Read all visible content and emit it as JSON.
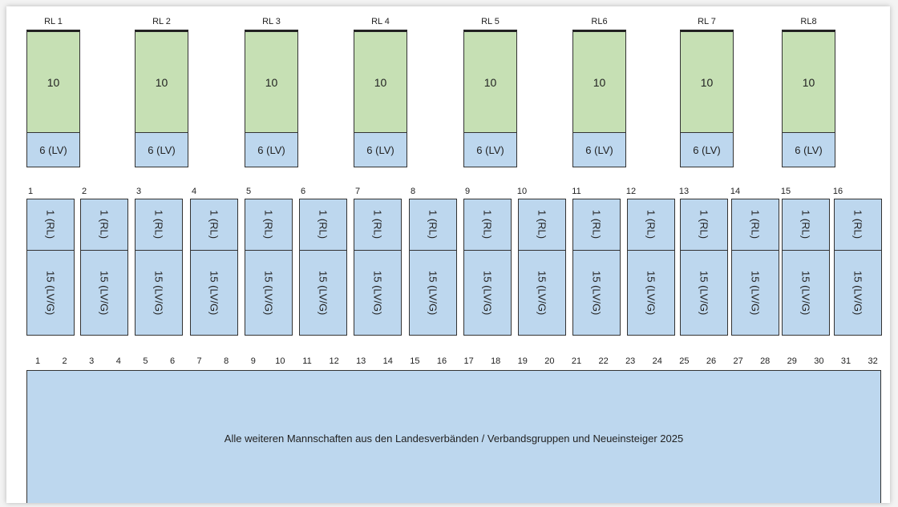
{
  "top_groups": [
    {
      "label": "RL 1",
      "main": "10",
      "sub": "6 (LV)"
    },
    {
      "label": "RL 2",
      "main": "10",
      "sub": "6 (LV)"
    },
    {
      "label": "RL 3",
      "main": "10",
      "sub": "6 (LV)"
    },
    {
      "label": "RL 4",
      "main": "10",
      "sub": "6 (LV)"
    },
    {
      "label": "RL 5",
      "main": "10",
      "sub": "6 (LV)"
    },
    {
      "label": "RL6",
      "main": "10",
      "sub": "6 (LV)"
    },
    {
      "label": "RL 7",
      "main": "10",
      "sub": "6 (LV)"
    },
    {
      "label": "RL8",
      "main": "10",
      "sub": "6 (LV)"
    }
  ],
  "middle_columns": [
    {
      "number": "1",
      "top": "1 (RL)",
      "bottom": "15 (LV/G)"
    },
    {
      "number": "2",
      "top": "1 (RL)",
      "bottom": "15 (LV/G)"
    },
    {
      "number": "3",
      "top": "1 (RL)",
      "bottom": "15 (LV/G)"
    },
    {
      "number": "4",
      "top": "1 (RL)",
      "bottom": "15 (LV/G)"
    },
    {
      "number": "5",
      "top": "1 (RL)",
      "bottom": "15 (LV/G)"
    },
    {
      "number": "6",
      "top": "1 (RL)",
      "bottom": "15 (LV/G)"
    },
    {
      "number": "7",
      "top": "1 (RL)",
      "bottom": "15 (LV/G)"
    },
    {
      "number": "8",
      "top": "1 (RL)",
      "bottom": "15 (LV/G)"
    },
    {
      "number": "9",
      "top": "1 (RL)",
      "bottom": "15 (LV/G)"
    },
    {
      "number": "10",
      "top": "1 (RL)",
      "bottom": "15 (LV/G)"
    },
    {
      "number": "11",
      "top": "1 (RL)",
      "bottom": "15 (LV/G)"
    },
    {
      "number": "12",
      "top": "1 (RL)",
      "bottom": "15 (LV/G)"
    },
    {
      "number": "13",
      "top": "1 (RL)",
      "bottom": "15 (LV/G)"
    },
    {
      "number": "14",
      "top": "1 (RL)",
      "bottom": "15 (LV/G)"
    },
    {
      "number": "15",
      "top": "1 (RL)",
      "bottom": "15 (LV/G)"
    },
    {
      "number": "16",
      "top": "1 (RL)",
      "bottom": "15 (LV/G)"
    }
  ],
  "bottom": {
    "numbers": [
      "1",
      "2",
      "3",
      "4",
      "5",
      "6",
      "7",
      "8",
      "9",
      "10",
      "11",
      "12",
      "13",
      "14",
      "15",
      "16",
      "17",
      "18",
      "19",
      "20",
      "21",
      "22",
      "23",
      "24",
      "25",
      "26",
      "27",
      "28",
      "29",
      "30",
      "31",
      "32"
    ],
    "text": "Alle weiteren Mannschaften aus den Landesverbänden / Verbandsgruppen und Neueinsteiger 2025"
  }
}
